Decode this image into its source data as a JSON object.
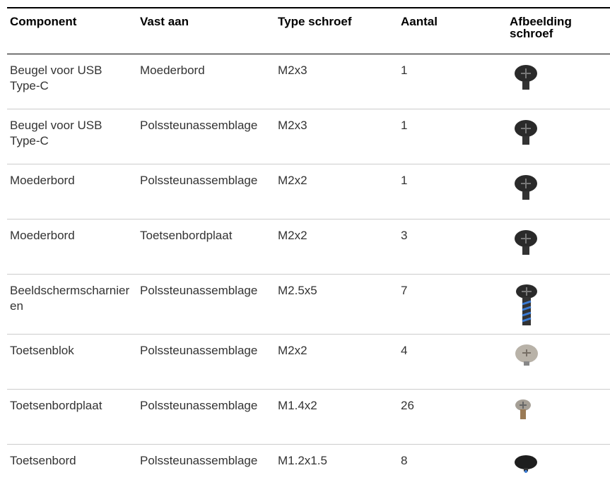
{
  "table": {
    "header": [
      "Component",
      "Vast aan",
      "Type schroef",
      "Aantal",
      "Afbeelding schroef"
    ],
    "rows": [
      [
        "Beugel voor USB Type-C",
        "Moederbord",
        "M2x3",
        1
      ],
      [
        "Beugel voor USB Type-C",
        "Polssteunassemblage",
        "M2x3",
        1
      ],
      [
        "Moederbord",
        "Polssteunassemblage",
        "M2x2",
        1
      ],
      [
        "Moederbord",
        "Toetsenbordplaat",
        "M2x2",
        3
      ],
      [
        "Beeldschermscharnieren",
        "Polssteunassemblage",
        "M2.5x5",
        7
      ],
      [
        "Toetsenblok",
        "Polssteunassemblage",
        "M2x2",
        4
      ],
      [
        "Toetsenbordplaat",
        "Polssteunassemblage",
        "M1.4x2",
        26
      ],
      [
        "Toetsenbord",
        "Polssteunassemblage",
        "M1.2x1.5",
        8
      ]
    ]
  }
}
